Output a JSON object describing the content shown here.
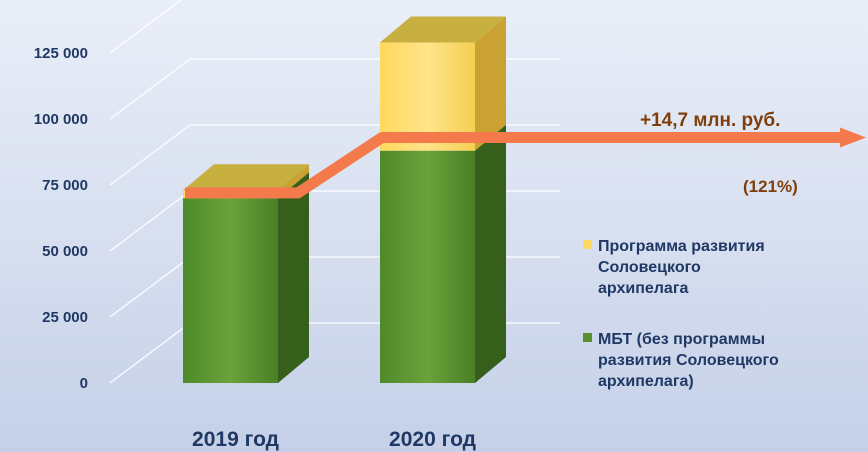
{
  "chart_data": {
    "type": "bar",
    "stacked": true,
    "three_d": true,
    "categories": [
      "2019 год",
      "2020 год"
    ],
    "series": [
      {
        "name": "МБТ (без программы развития Соловецкого архипелага)",
        "values": [
          70000,
          88000
        ],
        "color": "#5b8f2e"
      },
      {
        "name": "Программа развития Соловецкого архипелага",
        "values": [
          3000,
          41000
        ],
        "color": "#ffd966"
      }
    ],
    "trend_line": {
      "values": [
        72000,
        93000
      ],
      "color": "#f4794b"
    },
    "yticks": [
      0,
      25000,
      50000,
      75000,
      100000,
      125000
    ],
    "ytick_labels": [
      "0",
      "25 000",
      "50 000",
      "75 000",
      "100 000",
      "125 000"
    ],
    "ylim": [
      0,
      150000
    ],
    "annotations": [
      "+14,7 млн. руб.",
      "(121%)"
    ],
    "title": "",
    "xlabel": "",
    "ylabel": "",
    "grid": true,
    "legend": "right"
  },
  "legend": {
    "program_lines": [
      "Программа развития",
      "Соловецкого",
      "архипелага"
    ],
    "mbt_lines": [
      "МБТ (без программы",
      "развития Соловецкого",
      "архипелага)"
    ]
  }
}
